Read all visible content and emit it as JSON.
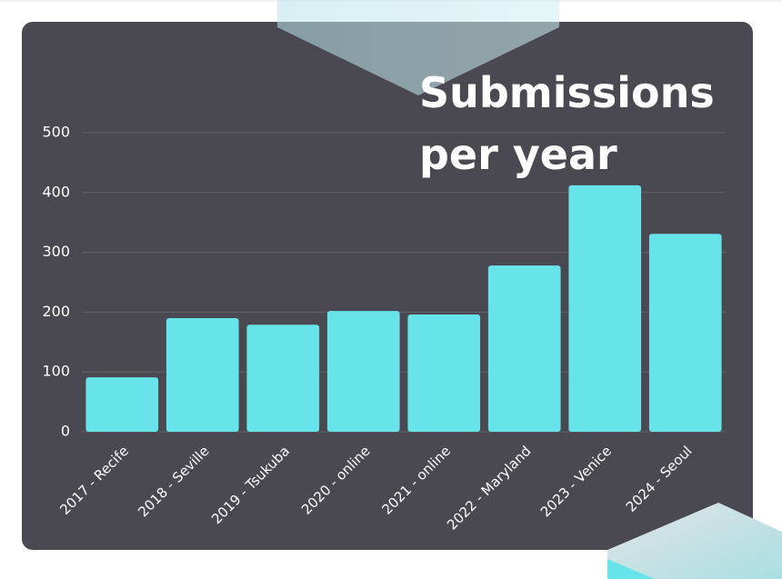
{
  "chart_data": {
    "type": "bar",
    "title": [
      "Submissions",
      "per year"
    ],
    "categories": [
      "2017 - Recife",
      "2018 - Seville",
      "2019 - Tsukuba",
      "2020 - online",
      "2021 - online",
      "2022 - Maryland",
      "2023 - Venice",
      "2024 - Seoul"
    ],
    "values": [
      91,
      190,
      179,
      202,
      196,
      278,
      412,
      331
    ],
    "color": "#67e3ea",
    "ylim": [
      0,
      500
    ],
    "yticks": [
      0,
      100,
      200,
      300,
      400,
      500
    ],
    "grid": true
  }
}
